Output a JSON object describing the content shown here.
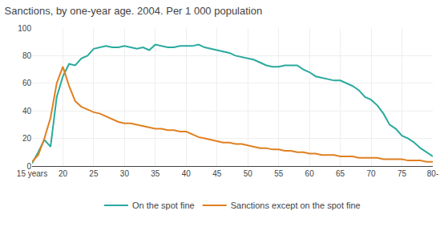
{
  "chart_data": {
    "type": "line",
    "title": "Sanctions, by one-year age. 2004. Per 1 000 population",
    "x": [
      15,
      16,
      17,
      18,
      19,
      20,
      21,
      22,
      23,
      24,
      25,
      26,
      27,
      28,
      29,
      30,
      31,
      32,
      33,
      34,
      35,
      36,
      37,
      38,
      39,
      40,
      41,
      42,
      43,
      44,
      45,
      46,
      47,
      48,
      49,
      50,
      51,
      52,
      53,
      54,
      55,
      56,
      57,
      58,
      59,
      60,
      61,
      62,
      63,
      64,
      65,
      66,
      67,
      68,
      69,
      70,
      71,
      72,
      73,
      74,
      75,
      76,
      77,
      78,
      79,
      80
    ],
    "series": [
      {
        "name": "On the spot fine",
        "color": "#2aaa9e",
        "values": [
          2,
          10,
          19,
          14,
          50,
          65,
          74,
          73,
          78,
          80,
          85,
          86,
          87,
          86,
          86,
          87,
          86,
          85,
          86,
          84,
          88,
          87,
          86,
          86,
          87,
          87,
          87,
          88,
          86,
          85,
          84,
          83,
          82,
          80,
          79,
          78,
          77,
          75,
          73,
          72,
          72,
          73,
          73,
          73,
          70,
          68,
          65,
          64,
          63,
          62,
          62,
          60,
          58,
          55,
          50,
          48,
          44,
          38,
          30,
          27,
          22,
          20,
          17,
          13,
          10,
          7
        ]
      },
      {
        "name": "Sanctions except on the spot fine",
        "color": "#e08020",
        "values": [
          3,
          8,
          20,
          35,
          60,
          72,
          58,
          47,
          43,
          41,
          39,
          38,
          36,
          34,
          32,
          31,
          31,
          30,
          29,
          28,
          27,
          27,
          26,
          26,
          25,
          25,
          23,
          21,
          20,
          19,
          18,
          17,
          17,
          16,
          16,
          15,
          14,
          13,
          13,
          12,
          12,
          11,
          11,
          10,
          10,
          9,
          9,
          8,
          8,
          8,
          7,
          7,
          7,
          6,
          6,
          6,
          6,
          5,
          5,
          5,
          5,
          4,
          4,
          4,
          3,
          3
        ]
      }
    ],
    "xlim": [
      15,
      80
    ],
    "xticks": [
      {
        "value": 15,
        "label": "15 years"
      },
      20,
      25,
      30,
      35,
      40,
      45,
      50,
      55,
      60,
      65,
      70,
      75,
      {
        "value": 80,
        "label": "80-"
      }
    ],
    "ylim": [
      0,
      100
    ],
    "yticks": [
      0,
      20,
      40,
      60,
      80,
      100
    ],
    "grid": true,
    "legend": "bottom"
  }
}
